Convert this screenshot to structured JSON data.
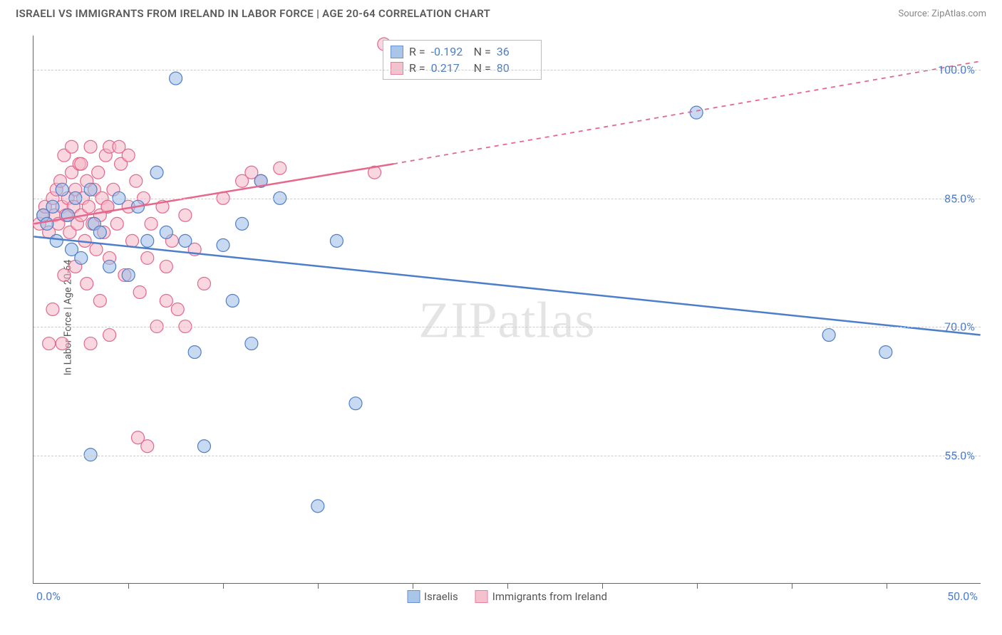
{
  "header": {
    "title": "ISRAELI VS IMMIGRANTS FROM IRELAND IN LABOR FORCE | AGE 20-64 CORRELATION CHART",
    "source": "Source: ZipAtlas.com"
  },
  "axes": {
    "y_label": "In Labor Force | Age 20-64",
    "y_ticks": [
      55.0,
      70.0,
      85.0,
      100.0
    ],
    "y_tick_labels": [
      "55.0%",
      "70.0%",
      "85.0%",
      "100.0%"
    ],
    "y_min": 40.0,
    "y_max": 104.0,
    "x_min": 0.0,
    "x_max": 50.0,
    "x_origin_label": "0.0%",
    "x_end_label": "50.0%",
    "x_tick_positions": [
      5,
      10,
      15,
      20,
      25,
      30,
      35,
      40,
      45
    ],
    "grid_color": "#cccccc"
  },
  "series": {
    "israelis": {
      "label": "Israelis",
      "color_fill": "#9bbce5",
      "color_stroke": "#4d7ec9",
      "fill_opacity": 0.55,
      "marker_radius": 9,
      "R": "-0.192",
      "N": "36",
      "trend": {
        "x1": 0,
        "y1": 80.5,
        "x2": 50,
        "y2": 69.0,
        "dash_after_x": 50
      },
      "points": [
        [
          0.5,
          83
        ],
        [
          0.7,
          82
        ],
        [
          1,
          84
        ],
        [
          1.2,
          80
        ],
        [
          1.5,
          86
        ],
        [
          1.8,
          83
        ],
        [
          2,
          79
        ],
        [
          2.2,
          85
        ],
        [
          2.5,
          78
        ],
        [
          3,
          86
        ],
        [
          3.2,
          82
        ],
        [
          3.5,
          81
        ],
        [
          4,
          77
        ],
        [
          4.5,
          85
        ],
        [
          5,
          76
        ],
        [
          5.5,
          84
        ],
        [
          6,
          80
        ],
        [
          6.5,
          88
        ],
        [
          7,
          81
        ],
        [
          7.5,
          99
        ],
        [
          8,
          80
        ],
        [
          8.5,
          67
        ],
        [
          9,
          56
        ],
        [
          10,
          79.5
        ],
        [
          10.5,
          73
        ],
        [
          11,
          82
        ],
        [
          11.5,
          68
        ],
        [
          12,
          87
        ],
        [
          13,
          85
        ],
        [
          15,
          49
        ],
        [
          16,
          80
        ],
        [
          17,
          61
        ],
        [
          35,
          95
        ],
        [
          42,
          69
        ],
        [
          45,
          67
        ],
        [
          3,
          55
        ]
      ]
    },
    "ireland": {
      "label": "Immigrants from Ireland",
      "color_fill": "#f4b7c6",
      "color_stroke": "#e5678b",
      "fill_opacity": 0.55,
      "marker_radius": 9,
      "R": "0.217",
      "N": "80",
      "trend": {
        "x1": 0,
        "y1": 82.0,
        "x2": 19,
        "y2": 89.0,
        "dash_to_x": 50,
        "dash_to_y": 101.0
      },
      "points": [
        [
          0.3,
          82
        ],
        [
          0.5,
          83
        ],
        [
          0.6,
          84
        ],
        [
          0.8,
          81
        ],
        [
          1,
          85
        ],
        [
          1.1,
          83
        ],
        [
          1.2,
          86
        ],
        [
          1.3,
          82
        ],
        [
          1.4,
          87
        ],
        [
          1.5,
          84
        ],
        [
          1.6,
          90
        ],
        [
          1.7,
          83
        ],
        [
          1.8,
          85
        ],
        [
          1.9,
          81
        ],
        [
          2,
          88
        ],
        [
          2.1,
          84
        ],
        [
          2.2,
          86
        ],
        [
          2.3,
          82
        ],
        [
          2.4,
          89
        ],
        [
          2.5,
          83
        ],
        [
          2.6,
          85
        ],
        [
          2.7,
          80
        ],
        [
          2.8,
          87
        ],
        [
          2.9,
          84
        ],
        [
          3,
          91
        ],
        [
          3.1,
          82
        ],
        [
          3.2,
          86
        ],
        [
          3.3,
          79
        ],
        [
          3.4,
          88
        ],
        [
          3.5,
          83
        ],
        [
          3.6,
          85
        ],
        [
          3.7,
          81
        ],
        [
          3.8,
          90
        ],
        [
          3.9,
          84
        ],
        [
          4,
          78
        ],
        [
          4.2,
          86
        ],
        [
          4.4,
          82
        ],
        [
          4.6,
          89
        ],
        [
          4.8,
          76
        ],
        [
          5,
          84
        ],
        [
          5.2,
          80
        ],
        [
          5.4,
          87
        ],
        [
          5.6,
          74
        ],
        [
          5.8,
          85
        ],
        [
          6,
          78
        ],
        [
          6.2,
          82
        ],
        [
          6.5,
          70
        ],
        [
          6.8,
          84
        ],
        [
          7,
          77
        ],
        [
          7.3,
          80
        ],
        [
          7.6,
          72
        ],
        [
          8,
          83
        ],
        [
          8.5,
          79
        ],
        [
          9,
          75
        ],
        [
          4,
          91
        ],
        [
          4.5,
          91
        ],
        [
          5,
          90
        ],
        [
          2,
          91
        ],
        [
          2.5,
          89
        ],
        [
          3,
          68
        ],
        [
          1.5,
          68
        ],
        [
          0.8,
          68
        ],
        [
          1,
          72
        ],
        [
          2.8,
          75
        ],
        [
          3.5,
          73
        ],
        [
          5.5,
          57
        ],
        [
          4,
          69
        ],
        [
          10,
          85
        ],
        [
          11,
          87
        ],
        [
          11.5,
          88
        ],
        [
          12,
          87
        ],
        [
          13,
          88.5
        ],
        [
          6,
          56
        ],
        [
          7,
          73
        ],
        [
          8,
          70
        ],
        [
          2.2,
          77
        ],
        [
          1.6,
          76
        ],
        [
          3.9,
          84
        ],
        [
          18.5,
          103
        ],
        [
          18,
          88
        ]
      ]
    }
  },
  "legend_bottom": {
    "items": [
      {
        "label": "Israelis",
        "key": "israelis"
      },
      {
        "label": "Immigrants from Ireland",
        "key": "ireland"
      }
    ]
  },
  "watermark": "ZIPatlas",
  "stats_box": {
    "r_label": "R =",
    "n_label": "N ="
  }
}
